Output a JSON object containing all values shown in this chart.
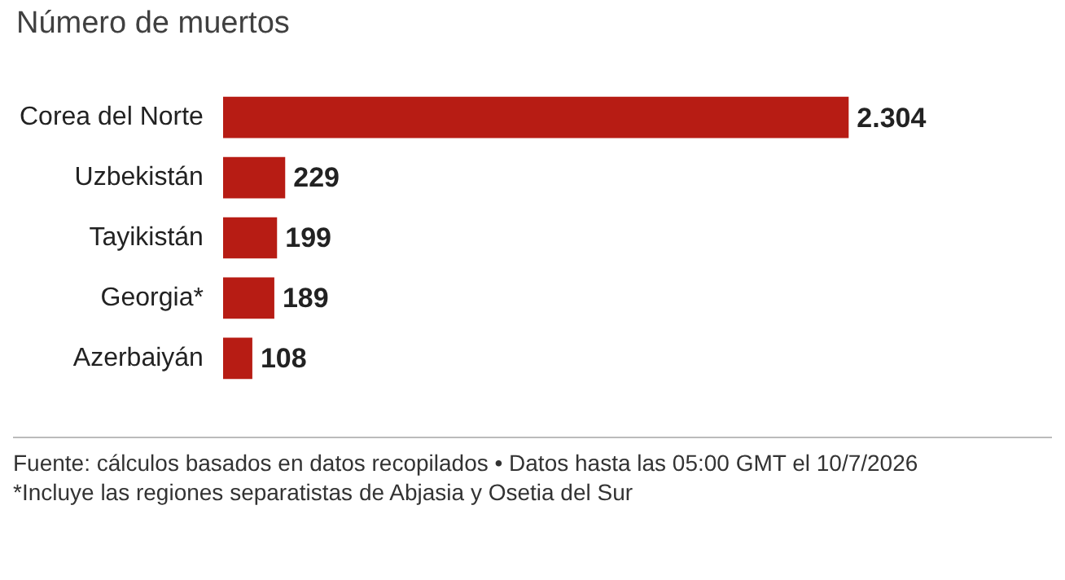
{
  "chart_data": {
    "type": "bar",
    "orientation": "horizontal",
    "title": "Número de muertos",
    "categories": [
      "Corea del Norte",
      "Uzbekistán",
      "Tayikistán",
      "Georgia*",
      "Azerbaiyán"
    ],
    "values": [
      2304,
      229,
      199,
      189,
      108
    ],
    "value_labels": [
      "2.304",
      "229",
      "199",
      "189",
      "108"
    ],
    "color": "#b71c14",
    "annotations": [
      "Fuente: cálculos basados en datos recopilados • Datos hasta las 05:00 GMT el 10/7/2026",
      "*Incluye las regiones separatistas de Abjasia y Osetia del Sur"
    ]
  }
}
